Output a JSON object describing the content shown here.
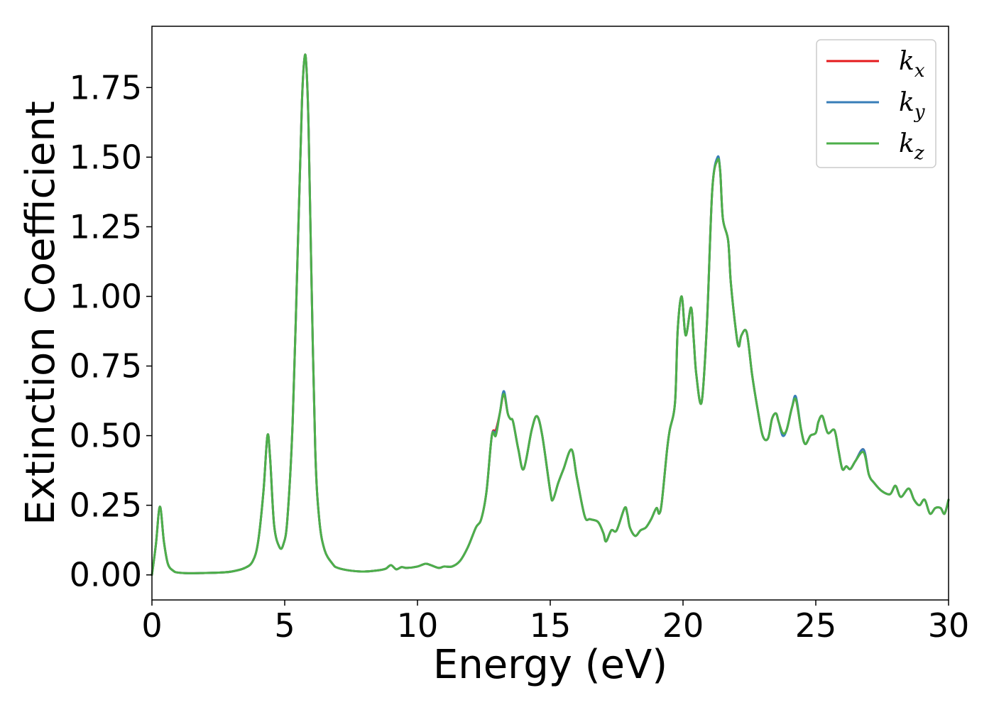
{
  "chart_data": {
    "type": "line",
    "title": "",
    "xlabel": "Energy (eV)",
    "ylabel": "Extinction Coefficient",
    "xlim": [
      0,
      30
    ],
    "ylim": [
      -0.09,
      1.97
    ],
    "xticks": [
      0,
      5,
      10,
      15,
      20,
      25,
      30
    ],
    "xtick_labels": [
      "0",
      "5",
      "10",
      "15",
      "20",
      "25",
      "30"
    ],
    "yticks": [
      0,
      0.25,
      0.5,
      0.75,
      1.0,
      1.25,
      1.5,
      1.75
    ],
    "ytick_labels": [
      "0.00",
      "0.25",
      "0.50",
      "0.75",
      "1.00",
      "1.25",
      "1.50",
      "1.75"
    ],
    "grid": false,
    "legend_position": "top-right",
    "series": [
      {
        "name": "k_x",
        "label_base": "k",
        "label_sub": "x",
        "color": "#e41a1c",
        "x": [
          0,
          0.15,
          0.3,
          0.45,
          0.6,
          0.8,
          1.0,
          1.5,
          2.0,
          2.5,
          3.0,
          3.5,
          3.8,
          4.0,
          4.2,
          4.35,
          4.45,
          4.6,
          4.8,
          4.95,
          5.1,
          5.3,
          5.5,
          5.65,
          5.75,
          5.82,
          5.9,
          6.0,
          6.15,
          6.3,
          6.5,
          6.8,
          7.0,
          7.5,
          8.0,
          8.5,
          8.8,
          9.0,
          9.2,
          9.4,
          9.6,
          10.0,
          10.3,
          10.5,
          10.8,
          11.0,
          11.3,
          11.6,
          11.9,
          12.2,
          12.4,
          12.6,
          12.8,
          12.95,
          13.1,
          13.25,
          13.4,
          13.5,
          13.6,
          13.8,
          14.0,
          14.3,
          14.5,
          14.7,
          15.0,
          15.1,
          15.3,
          15.5,
          15.8,
          16.0,
          16.3,
          16.5,
          16.8,
          17.0,
          17.1,
          17.3,
          17.5,
          17.8,
          17.9,
          18.0,
          18.2,
          18.4,
          18.6,
          18.8,
          19.0,
          19.1,
          19.2,
          19.4,
          19.5,
          19.7,
          19.8,
          19.95,
          20.1,
          20.3,
          20.4,
          20.5,
          20.7,
          20.9,
          21.1,
          21.3,
          21.4,
          21.5,
          21.7,
          21.8,
          22.0,
          22.1,
          22.2,
          22.4,
          22.6,
          22.8,
          23.0,
          23.2,
          23.35,
          23.5,
          23.6,
          23.75,
          23.9,
          24.1,
          24.25,
          24.45,
          24.6,
          24.8,
          25.0,
          25.1,
          25.25,
          25.45,
          25.7,
          25.85,
          26.0,
          26.15,
          26.3,
          26.5,
          26.8,
          27.0,
          27.2,
          27.5,
          27.8,
          28.0,
          28.2,
          28.5,
          28.7,
          28.9,
          29.1,
          29.3,
          29.5,
          29.7,
          29.85,
          30.0
        ],
        "y": [
          0.0,
          0.11,
          0.245,
          0.12,
          0.04,
          0.015,
          0.008,
          0.006,
          0.007,
          0.008,
          0.012,
          0.025,
          0.05,
          0.12,
          0.3,
          0.5,
          0.42,
          0.18,
          0.1,
          0.11,
          0.2,
          0.55,
          1.2,
          1.7,
          1.86,
          1.82,
          1.6,
          1.1,
          0.45,
          0.2,
          0.09,
          0.04,
          0.025,
          0.015,
          0.012,
          0.016,
          0.022,
          0.035,
          0.02,
          0.028,
          0.025,
          0.03,
          0.04,
          0.035,
          0.025,
          0.03,
          0.03,
          0.05,
          0.1,
          0.17,
          0.2,
          0.3,
          0.5,
          0.52,
          0.58,
          0.65,
          0.58,
          0.56,
          0.55,
          0.45,
          0.38,
          0.52,
          0.57,
          0.5,
          0.3,
          0.27,
          0.33,
          0.38,
          0.45,
          0.35,
          0.21,
          0.2,
          0.19,
          0.15,
          0.12,
          0.16,
          0.16,
          0.24,
          0.22,
          0.17,
          0.14,
          0.16,
          0.17,
          0.2,
          0.24,
          0.22,
          0.26,
          0.45,
          0.52,
          0.62,
          0.88,
          1.0,
          0.86,
          0.96,
          0.85,
          0.72,
          0.62,
          0.9,
          1.38,
          1.49,
          1.45,
          1.28,
          1.2,
          1.05,
          0.87,
          0.82,
          0.86,
          0.87,
          0.72,
          0.6,
          0.5,
          0.49,
          0.56,
          0.58,
          0.55,
          0.51,
          0.52,
          0.6,
          0.63,
          0.52,
          0.47,
          0.5,
          0.51,
          0.55,
          0.57,
          0.51,
          0.52,
          0.45,
          0.38,
          0.39,
          0.38,
          0.41,
          0.45,
          0.36,
          0.33,
          0.3,
          0.29,
          0.32,
          0.28,
          0.31,
          0.27,
          0.25,
          0.27,
          0.22,
          0.24,
          0.24,
          0.22,
          0.27
        ]
      },
      {
        "name": "k_y",
        "label_base": "k",
        "label_sub": "y",
        "color": "#377eb8",
        "x": [
          0,
          0.15,
          0.3,
          0.45,
          0.6,
          0.8,
          1.0,
          1.5,
          2.0,
          2.5,
          3.0,
          3.5,
          3.8,
          4.0,
          4.2,
          4.35,
          4.45,
          4.6,
          4.8,
          4.95,
          5.1,
          5.3,
          5.5,
          5.65,
          5.75,
          5.82,
          5.9,
          6.0,
          6.15,
          6.3,
          6.5,
          6.8,
          7.0,
          7.5,
          8.0,
          8.5,
          8.8,
          9.0,
          9.2,
          9.4,
          9.6,
          10.0,
          10.3,
          10.5,
          10.8,
          11.0,
          11.3,
          11.6,
          11.9,
          12.2,
          12.4,
          12.6,
          12.8,
          12.95,
          13.1,
          13.25,
          13.4,
          13.5,
          13.6,
          13.8,
          14.0,
          14.3,
          14.5,
          14.7,
          15.0,
          15.1,
          15.3,
          15.5,
          15.8,
          16.0,
          16.3,
          16.5,
          16.8,
          17.0,
          17.1,
          17.3,
          17.5,
          17.8,
          17.9,
          18.0,
          18.2,
          18.4,
          18.6,
          18.8,
          19.0,
          19.1,
          19.2,
          19.4,
          19.5,
          19.7,
          19.8,
          19.95,
          20.1,
          20.3,
          20.4,
          20.5,
          20.7,
          20.9,
          21.1,
          21.3,
          21.4,
          21.5,
          21.7,
          21.8,
          22.0,
          22.1,
          22.2,
          22.4,
          22.6,
          22.8,
          23.0,
          23.2,
          23.35,
          23.5,
          23.6,
          23.75,
          23.9,
          24.1,
          24.25,
          24.45,
          24.6,
          24.8,
          25.0,
          25.1,
          25.25,
          25.45,
          25.7,
          25.85,
          26.0,
          26.15,
          26.3,
          26.5,
          26.8,
          27.0,
          27.2,
          27.5,
          27.8,
          28.0,
          28.2,
          28.5,
          28.7,
          28.9,
          29.1,
          29.3,
          29.5,
          29.7,
          29.85,
          30.0
        ],
        "y": [
          0.0,
          0.11,
          0.245,
          0.12,
          0.04,
          0.015,
          0.008,
          0.006,
          0.007,
          0.008,
          0.012,
          0.025,
          0.05,
          0.12,
          0.3,
          0.5,
          0.42,
          0.18,
          0.1,
          0.11,
          0.2,
          0.55,
          1.2,
          1.7,
          1.86,
          1.82,
          1.6,
          1.1,
          0.45,
          0.2,
          0.09,
          0.04,
          0.025,
          0.015,
          0.012,
          0.016,
          0.022,
          0.035,
          0.02,
          0.028,
          0.025,
          0.03,
          0.04,
          0.035,
          0.025,
          0.03,
          0.03,
          0.05,
          0.1,
          0.17,
          0.2,
          0.3,
          0.5,
          0.51,
          0.58,
          0.66,
          0.58,
          0.56,
          0.55,
          0.45,
          0.38,
          0.52,
          0.57,
          0.5,
          0.3,
          0.27,
          0.33,
          0.38,
          0.45,
          0.35,
          0.21,
          0.2,
          0.19,
          0.15,
          0.12,
          0.16,
          0.16,
          0.24,
          0.22,
          0.17,
          0.14,
          0.16,
          0.17,
          0.2,
          0.24,
          0.22,
          0.26,
          0.45,
          0.52,
          0.62,
          0.88,
          1.0,
          0.86,
          0.96,
          0.85,
          0.72,
          0.62,
          0.9,
          1.38,
          1.5,
          1.45,
          1.28,
          1.2,
          1.05,
          0.87,
          0.82,
          0.86,
          0.87,
          0.72,
          0.6,
          0.5,
          0.49,
          0.56,
          0.58,
          0.55,
          0.5,
          0.52,
          0.6,
          0.64,
          0.52,
          0.47,
          0.5,
          0.51,
          0.55,
          0.57,
          0.51,
          0.52,
          0.45,
          0.38,
          0.39,
          0.38,
          0.41,
          0.45,
          0.36,
          0.33,
          0.3,
          0.29,
          0.32,
          0.28,
          0.31,
          0.27,
          0.25,
          0.27,
          0.22,
          0.24,
          0.24,
          0.22,
          0.27
        ]
      },
      {
        "name": "k_z",
        "label_base": "k",
        "label_sub": "z",
        "color": "#4daf4a",
        "x": [
          0,
          0.15,
          0.3,
          0.45,
          0.6,
          0.8,
          1.0,
          1.5,
          2.0,
          2.5,
          3.0,
          3.5,
          3.8,
          4.0,
          4.2,
          4.35,
          4.45,
          4.6,
          4.8,
          4.95,
          5.1,
          5.3,
          5.5,
          5.65,
          5.75,
          5.82,
          5.9,
          6.0,
          6.15,
          6.3,
          6.5,
          6.8,
          7.0,
          7.5,
          8.0,
          8.5,
          8.8,
          9.0,
          9.2,
          9.4,
          9.6,
          10.0,
          10.3,
          10.5,
          10.8,
          11.0,
          11.3,
          11.6,
          11.9,
          12.2,
          12.4,
          12.6,
          12.8,
          12.95,
          13.1,
          13.25,
          13.4,
          13.5,
          13.6,
          13.8,
          14.0,
          14.3,
          14.5,
          14.7,
          15.0,
          15.1,
          15.3,
          15.5,
          15.8,
          16.0,
          16.3,
          16.5,
          16.8,
          17.0,
          17.1,
          17.3,
          17.5,
          17.8,
          17.9,
          18.0,
          18.2,
          18.4,
          18.6,
          18.8,
          19.0,
          19.1,
          19.2,
          19.4,
          19.5,
          19.7,
          19.8,
          19.95,
          20.1,
          20.3,
          20.4,
          20.5,
          20.7,
          20.9,
          21.1,
          21.3,
          21.4,
          21.5,
          21.7,
          21.8,
          22.0,
          22.1,
          22.2,
          22.4,
          22.6,
          22.8,
          23.0,
          23.2,
          23.35,
          23.5,
          23.6,
          23.75,
          23.9,
          24.1,
          24.25,
          24.45,
          24.6,
          24.8,
          25.0,
          25.1,
          25.25,
          25.45,
          25.7,
          25.85,
          26.0,
          26.15,
          26.3,
          26.5,
          26.8,
          27.0,
          27.2,
          27.5,
          27.8,
          28.0,
          28.2,
          28.5,
          28.7,
          28.9,
          29.1,
          29.3,
          29.5,
          29.7,
          29.85,
          30.0
        ],
        "y": [
          0.0,
          0.11,
          0.245,
          0.12,
          0.04,
          0.015,
          0.008,
          0.006,
          0.007,
          0.008,
          0.012,
          0.025,
          0.05,
          0.12,
          0.3,
          0.5,
          0.42,
          0.18,
          0.1,
          0.11,
          0.2,
          0.55,
          1.2,
          1.7,
          1.86,
          1.82,
          1.6,
          1.1,
          0.45,
          0.2,
          0.09,
          0.04,
          0.025,
          0.015,
          0.012,
          0.016,
          0.022,
          0.035,
          0.02,
          0.028,
          0.025,
          0.03,
          0.04,
          0.035,
          0.025,
          0.03,
          0.03,
          0.05,
          0.1,
          0.17,
          0.2,
          0.3,
          0.5,
          0.5,
          0.58,
          0.65,
          0.58,
          0.56,
          0.55,
          0.45,
          0.38,
          0.52,
          0.57,
          0.5,
          0.3,
          0.27,
          0.33,
          0.38,
          0.45,
          0.35,
          0.21,
          0.2,
          0.19,
          0.15,
          0.12,
          0.16,
          0.16,
          0.24,
          0.22,
          0.17,
          0.14,
          0.16,
          0.17,
          0.2,
          0.24,
          0.22,
          0.26,
          0.45,
          0.52,
          0.62,
          0.88,
          1.0,
          0.86,
          0.96,
          0.85,
          0.72,
          0.62,
          0.9,
          1.38,
          1.49,
          1.45,
          1.28,
          1.2,
          1.05,
          0.87,
          0.82,
          0.86,
          0.87,
          0.72,
          0.6,
          0.5,
          0.49,
          0.56,
          0.58,
          0.55,
          0.51,
          0.52,
          0.6,
          0.63,
          0.52,
          0.47,
          0.5,
          0.51,
          0.55,
          0.57,
          0.51,
          0.52,
          0.45,
          0.38,
          0.39,
          0.38,
          0.41,
          0.44,
          0.36,
          0.33,
          0.3,
          0.29,
          0.32,
          0.28,
          0.31,
          0.27,
          0.25,
          0.27,
          0.22,
          0.24,
          0.24,
          0.22,
          0.27
        ]
      }
    ]
  }
}
